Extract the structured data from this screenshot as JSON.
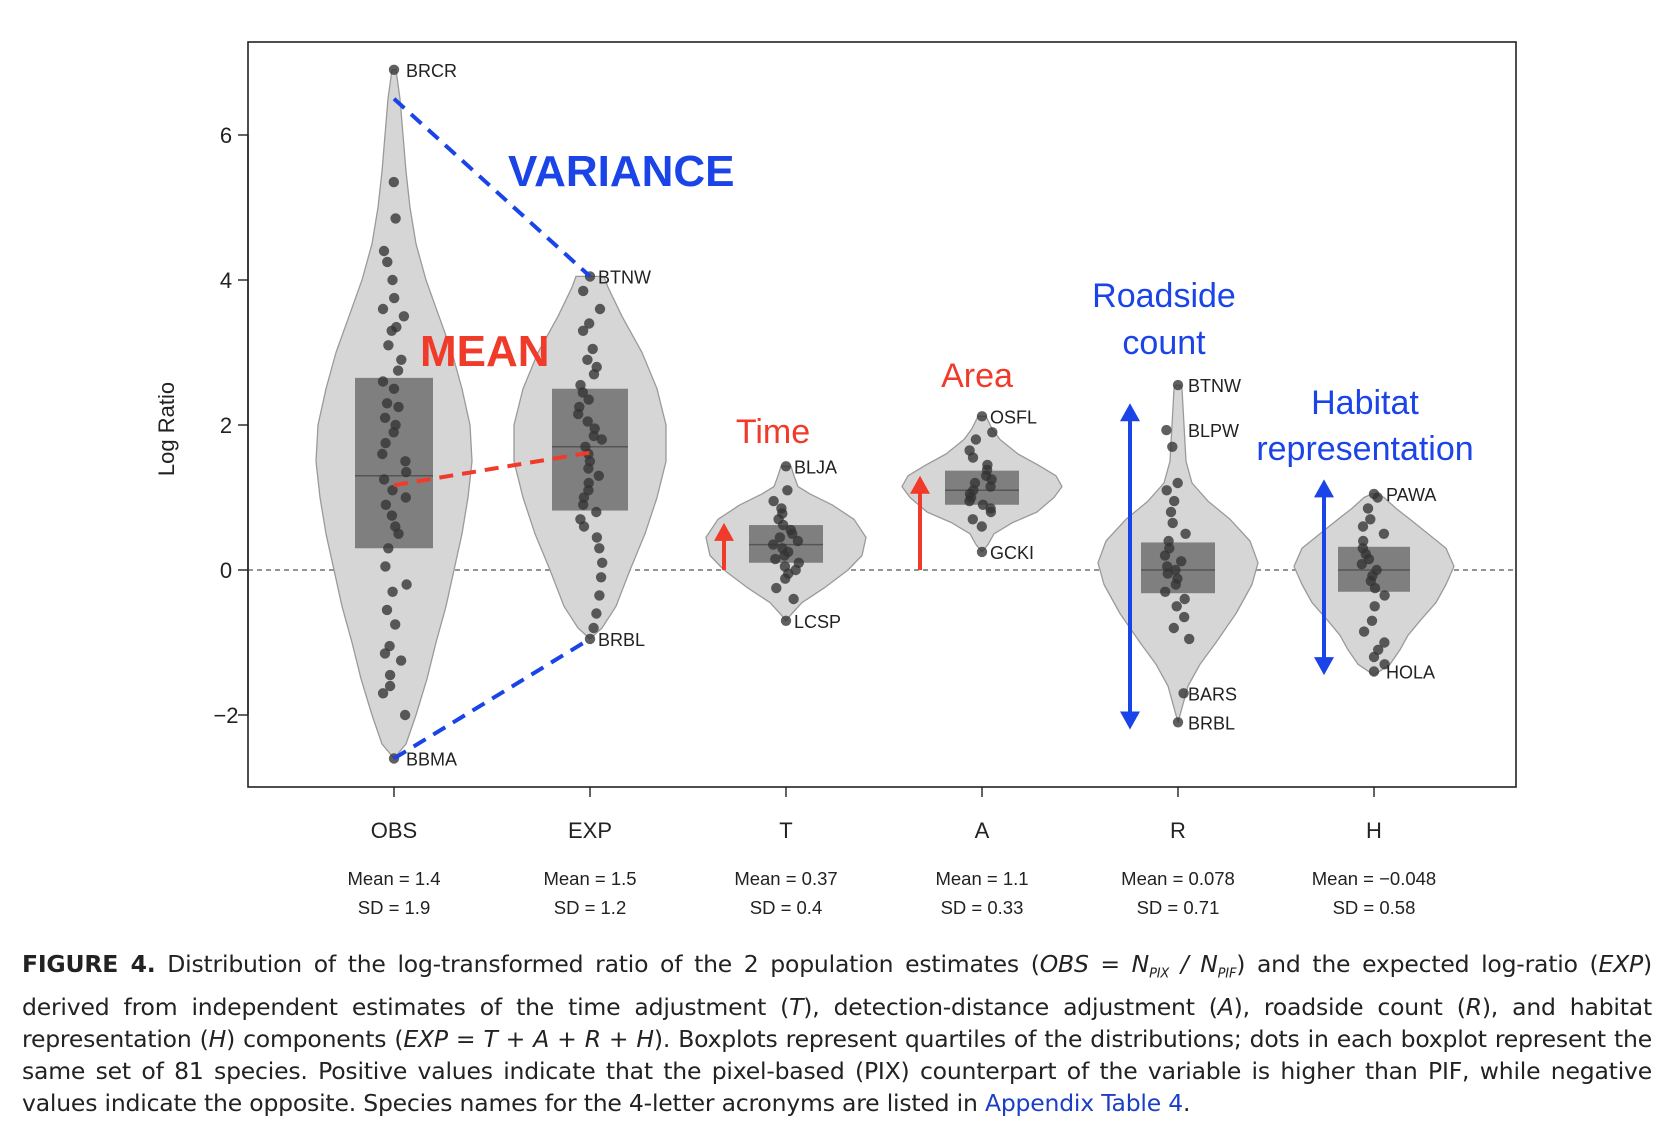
{
  "chart_data": {
    "type": "violin",
    "ylabel": "Log Ratio",
    "ylim": [
      -3.0,
      7.3
    ],
    "yticks": [
      -2,
      0,
      2,
      4,
      6
    ],
    "ytick_labels": [
      "−2",
      "0",
      "2",
      "4",
      "6"
    ],
    "reference_line": 0,
    "categories": [
      {
        "name": "OBS",
        "mean": "Mean = 1.4",
        "sd": "SD = 1.9",
        "q1": 0.3,
        "median": 1.3,
        "q3": 2.65,
        "range": [
          -2.6,
          6.9
        ],
        "points": [
          6.9,
          5.35,
          4.85,
          4.4,
          4.25,
          4.0,
          3.75,
          3.6,
          3.5,
          3.35,
          3.3,
          3.1,
          2.9,
          2.75,
          2.6,
          2.5,
          2.3,
          2.25,
          2.1,
          2.0,
          1.9,
          1.75,
          1.6,
          1.5,
          1.35,
          1.25,
          1.1,
          1.0,
          0.9,
          0.75,
          0.6,
          0.5,
          0.3,
          0.05,
          -0.2,
          -0.3,
          -0.55,
          -0.75,
          -1.05,
          -1.15,
          -1.25,
          -1.45,
          -1.6,
          -1.7,
          -2.0,
          -2.6
        ],
        "labels": [
          {
            "text": "BRCR",
            "value": 6.9
          },
          {
            "text": "BBMA",
            "value": -2.6
          }
        ]
      },
      {
        "name": "EXP",
        "mean": "Mean = 1.5",
        "sd": "SD = 1.2",
        "q1": 0.82,
        "median": 1.7,
        "q3": 2.5,
        "range": [
          -0.95,
          4.05
        ],
        "points": [
          4.05,
          3.85,
          3.6,
          3.4,
          3.3,
          3.05,
          2.9,
          2.8,
          2.7,
          2.55,
          2.45,
          2.35,
          2.25,
          2.15,
          2.05,
          1.95,
          1.85,
          1.8,
          1.7,
          1.6,
          1.5,
          1.4,
          1.3,
          1.2,
          1.1,
          1.0,
          0.9,
          0.8,
          0.7,
          0.6,
          0.45,
          0.3,
          0.1,
          -0.1,
          -0.35,
          -0.6,
          -0.8,
          -0.95
        ],
        "labels": [
          {
            "text": "BTNW",
            "value": 4.05
          },
          {
            "text": "BRBL",
            "value": -0.95
          }
        ]
      },
      {
        "name": "T",
        "mean": "Mean = 0.37",
        "sd": "SD = 0.4",
        "q1": 0.1,
        "median": 0.35,
        "q3": 0.62,
        "range": [
          -0.7,
          1.43
        ],
        "points": [
          1.43,
          1.1,
          0.95,
          0.85,
          0.78,
          0.7,
          0.62,
          0.55,
          0.5,
          0.45,
          0.4,
          0.35,
          0.3,
          0.25,
          0.2,
          0.15,
          0.1,
          0.05,
          0.0,
          -0.05,
          -0.12,
          -0.25,
          -0.4,
          -0.7
        ],
        "labels": [
          {
            "text": "BLJA",
            "value": 1.43
          },
          {
            "text": "LCSP",
            "value": -0.7
          }
        ]
      },
      {
        "name": "A",
        "mean": "Mean = 1.1",
        "sd": "SD = 0.33",
        "q1": 0.9,
        "median": 1.1,
        "q3": 1.37,
        "range": [
          0.25,
          2.12
        ],
        "points": [
          2.12,
          1.9,
          1.8,
          1.65,
          1.55,
          1.45,
          1.38,
          1.3,
          1.25,
          1.2,
          1.15,
          1.1,
          1.05,
          1.0,
          0.95,
          0.9,
          0.85,
          0.8,
          0.7,
          0.6,
          0.25
        ],
        "labels": [
          {
            "text": "OSFL",
            "value": 2.12
          },
          {
            "text": "GCKI",
            "value": 0.25
          }
        ]
      },
      {
        "name": "R",
        "mean": "Mean = 0.078",
        "sd": "SD = 0.71",
        "q1": -0.32,
        "median": 0.0,
        "q3": 0.38,
        "range": [
          -2.1,
          2.55
        ],
        "points": [
          2.55,
          1.93,
          1.7,
          1.2,
          1.1,
          0.95,
          0.8,
          0.65,
          0.5,
          0.4,
          0.3,
          0.2,
          0.12,
          0.05,
          0.0,
          -0.05,
          -0.12,
          -0.2,
          -0.3,
          -0.4,
          -0.5,
          -0.65,
          -0.8,
          -0.95,
          -1.7,
          -2.1
        ],
        "labels": [
          {
            "text": "BTNW",
            "value": 2.55
          },
          {
            "text": "BLPW",
            "value": 1.93
          },
          {
            "text": "BARS",
            "value": -1.7
          },
          {
            "text": "BRBL",
            "value": -2.1
          }
        ]
      },
      {
        "name": "H",
        "mean": "Mean = −0.048",
        "sd": "SD = 0.58",
        "q1": -0.3,
        "median": 0.0,
        "q3": 0.32,
        "range": [
          -1.4,
          1.05
        ],
        "points": [
          1.05,
          1.0,
          0.85,
          0.7,
          0.6,
          0.5,
          0.4,
          0.3,
          0.22,
          0.15,
          0.08,
          0.0,
          -0.08,
          -0.15,
          -0.25,
          -0.35,
          -0.5,
          -0.7,
          -0.85,
          -1.0,
          -1.1,
          -1.2,
          -1.3,
          -1.4
        ],
        "labels": [
          {
            "text": "PAWA",
            "value": 1.05
          },
          {
            "text": "HOLA",
            "value": -1.4
          }
        ]
      }
    ],
    "annotations": {
      "variance": "VARIANCE",
      "mean": "MEAN",
      "time": "Time",
      "area": "Area",
      "roadside_1": "Roadside",
      "roadside_2": "count",
      "habitat_1": "Habitat",
      "habitat_2": "representation"
    },
    "colors": {
      "violin_fill": "#d6d6d6",
      "violin_stroke": "#9a9a9a",
      "box": "#707070",
      "point": "#333333",
      "blue": "#1a44e8",
      "red": "#f03a2a"
    }
  },
  "caption": {
    "figure_label": "FIGURE 4.",
    "part1": " Distribution of the log-transformed ratio of the 2 population estimates (",
    "obs_eq": "OBS = N",
    "sub_pix": "PIX",
    "slash_n": " / N",
    "sub_pif": "PIF",
    "part2": ") and the expected log-ratio (",
    "exp_it": "EXP",
    "part3": ") derived from independent estimates of the time adjustment (",
    "t_it": "T",
    "part4": "), detection-distance adjustment (",
    "a_it": "A",
    "part5": "), roadside count (",
    "r_it": "R",
    "part6": "), and habitat representation (",
    "h_it": "H",
    "part7": ") components (",
    "formula_it": "EXP = T + A + R + H",
    "part8": "). Boxplots represent quartiles of the distributions; dots in each boxplot represent the same set of 81 species. Positive values indicate that the pixel-based (PIX) counterpart of the variable is higher than PIF, while negative values indicate the opposite. Species names for the 4-letter acronyms are listed in ",
    "link": "Appendix Table 4",
    "part9": "."
  }
}
